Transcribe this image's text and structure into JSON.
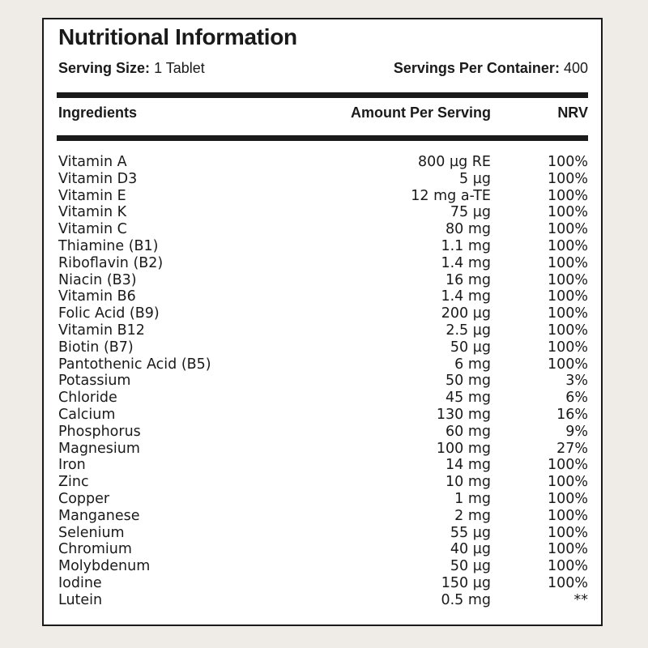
{
  "panel": {
    "title": "Nutritional Information",
    "serving_size_label": "Serving Size:",
    "serving_size_value": "1 Tablet",
    "servings_per_container_label": "Servings Per Container:",
    "servings_per_container_value": "400"
  },
  "table": {
    "headers": {
      "ingredients": "Ingredients",
      "amount": "Amount Per Serving",
      "nrv": "NRV"
    },
    "rows": [
      {
        "name": "Vitamin A",
        "amount": "800 µg RE",
        "nrv": "100%"
      },
      {
        "name": "Vitamin D3",
        "amount": "5 µg",
        "nrv": "100%"
      },
      {
        "name": "Vitamin E",
        "amount": "12 mg a-TE",
        "nrv": "100%"
      },
      {
        "name": "Vitamin K",
        "amount": "75 µg",
        "nrv": "100%"
      },
      {
        "name": "Vitamin C",
        "amount": "80 mg",
        "nrv": "100%"
      },
      {
        "name": "Thiamine (B1)",
        "amount": "1.1 mg",
        "nrv": "100%"
      },
      {
        "name": "Riboflavin (B2)",
        "amount": "1.4 mg",
        "nrv": "100%"
      },
      {
        "name": "Niacin (B3)",
        "amount": "16 mg",
        "nrv": "100%"
      },
      {
        "name": "Vitamin B6",
        "amount": "1.4 mg",
        "nrv": "100%"
      },
      {
        "name": "Folic Acid (B9)",
        "amount": "200 µg",
        "nrv": "100%"
      },
      {
        "name": "Vitamin B12",
        "amount": "2.5 µg",
        "nrv": "100%"
      },
      {
        "name": "Biotin (B7)",
        "amount": "50 µg",
        "nrv": "100%"
      },
      {
        "name": "Pantothenic Acid (B5)",
        "amount": "6 mg",
        "nrv": "100%"
      },
      {
        "name": "Potassium",
        "amount": "50 mg",
        "nrv": "3%"
      },
      {
        "name": "Chloride",
        "amount": "45 mg",
        "nrv": "6%"
      },
      {
        "name": "Calcium",
        "amount": "130 mg",
        "nrv": "16%"
      },
      {
        "name": "Phosphorus",
        "amount": "60 mg",
        "nrv": "9%"
      },
      {
        "name": "Magnesium",
        "amount": "100 mg",
        "nrv": "27%"
      },
      {
        "name": "Iron",
        "amount": "14 mg",
        "nrv": "100%"
      },
      {
        "name": "Zinc",
        "amount": "10 mg",
        "nrv": "100%"
      },
      {
        "name": "Copper",
        "amount": "1 mg",
        "nrv": "100%"
      },
      {
        "name": "Manganese",
        "amount": "2 mg",
        "nrv": "100%"
      },
      {
        "name": "Selenium",
        "amount": "55 µg",
        "nrv": "100%"
      },
      {
        "name": "Chromium",
        "amount": "40 µg",
        "nrv": "100%"
      },
      {
        "name": "Molybdenum",
        "amount": "50 µg",
        "nrv": "100%"
      },
      {
        "name": "Iodine",
        "amount": "150 µg",
        "nrv": "100%"
      },
      {
        "name": "Lutein",
        "amount": "0.5 mg",
        "nrv": "**"
      }
    ]
  }
}
